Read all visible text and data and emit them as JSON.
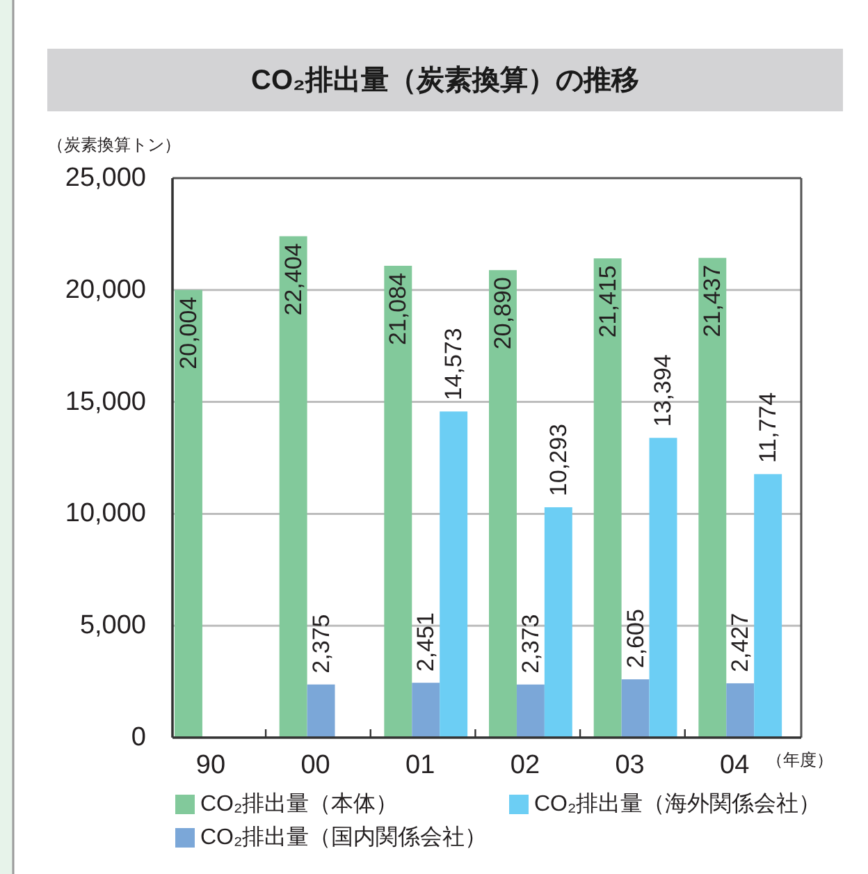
{
  "chart_data": {
    "type": "bar",
    "title": "CO₂排出量（炭素換算）の推移",
    "ylabel": "（炭素換算トン）",
    "xlabel": "（年度）",
    "categories": [
      "90",
      "00",
      "01",
      "02",
      "03",
      "04"
    ],
    "series": [
      {
        "name": "CO₂排出量（本体）",
        "color": "#82c99b",
        "values": [
          20004,
          22404,
          21084,
          20890,
          21415,
          21437
        ],
        "value_labels": [
          "20,004",
          "22,404",
          "21,084",
          "20,890",
          "21,415",
          "21,437"
        ]
      },
      {
        "name": "CO₂排出量（国内関係会社）",
        "color": "#7ba7d8",
        "values": [
          null,
          2375,
          2451,
          2373,
          2605,
          2427
        ],
        "value_labels": [
          null,
          "2,375",
          "2,451",
          "2,373",
          "2,605",
          "2,427"
        ]
      },
      {
        "name": "CO₂排出量（海外関係会社）",
        "color": "#6ccef4",
        "values": [
          null,
          null,
          14573,
          10293,
          13394,
          11774
        ],
        "value_labels": [
          null,
          null,
          "14,573",
          "10,293",
          "13,394",
          "11,774"
        ]
      }
    ],
    "ylim": [
      0,
      25000
    ],
    "yticks": [
      0,
      {
        "value": 5000,
        "label": "5,000"
      },
      {
        "value": 10000,
        "label": "10,000"
      },
      {
        "value": 15000,
        "label": "15,000"
      },
      {
        "value": 20000,
        "label": "20,000"
      },
      {
        "value": 25000,
        "label": "25,000"
      }
    ],
    "grid": "y",
    "legend": "bottom"
  }
}
